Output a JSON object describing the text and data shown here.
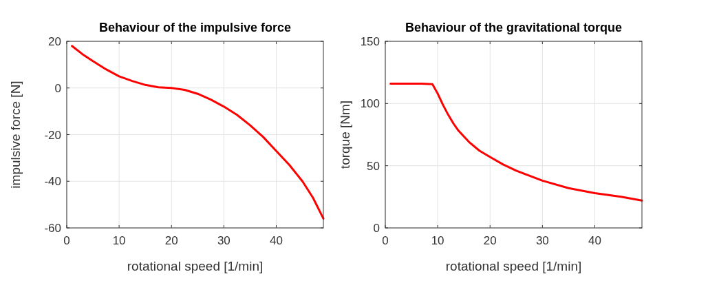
{
  "chart_data": [
    {
      "type": "line",
      "title": "Behaviour of the impulsive force",
      "xlabel": "rotational speed [1/min]",
      "ylabel": "impulsive force [N]",
      "xlim": [
        0,
        49
      ],
      "ylim": [
        -60,
        20
      ],
      "xticks": [
        0,
        10,
        20,
        30,
        40
      ],
      "yticks": [
        -60,
        -40,
        -20,
        0,
        20
      ],
      "grid": true,
      "series": [
        {
          "color": "#ff0000",
          "x": [
            1,
            3,
            5,
            7.5,
            10,
            12.5,
            15,
            17.5,
            20,
            22.5,
            25,
            27.5,
            30,
            32.5,
            35,
            37.5,
            40,
            42.5,
            45,
            47,
            49
          ],
          "values": [
            18,
            14.5,
            11.5,
            8,
            5,
            3,
            1.3,
            0.3,
            0,
            -0.8,
            -2.5,
            -5,
            -8,
            -11.5,
            -16,
            -21,
            -27,
            -33,
            -40,
            -47,
            -56
          ]
        }
      ]
    },
    {
      "type": "line",
      "title": "Behaviour of the gravitational torque",
      "xlabel": "rotational speed [1/min]",
      "ylabel": "torque [Nm]",
      "xlim": [
        0,
        49
      ],
      "ylim": [
        0,
        150
      ],
      "xticks": [
        0,
        10,
        20,
        30,
        40
      ],
      "yticks": [
        0,
        50,
        100,
        150
      ],
      "grid": true,
      "series": [
        {
          "color": "#ff0000",
          "x": [
            1,
            3,
            5,
            7,
            9,
            10,
            11,
            12,
            13,
            14,
            16,
            18,
            20,
            22.5,
            25,
            27.5,
            30,
            35,
            40,
            45,
            49
          ],
          "values": [
            116,
            116,
            116,
            116,
            115.5,
            108,
            99,
            91,
            84,
            78,
            69,
            62,
            57,
            51,
            46,
            42,
            38,
            32,
            28,
            25,
            22
          ]
        }
      ]
    }
  ]
}
